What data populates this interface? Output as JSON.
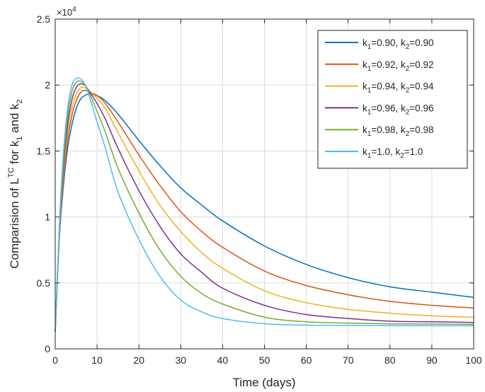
{
  "chart_data": {
    "type": "line",
    "xlabel": "Time (days)",
    "ylabel": {
      "base": "Comparision of L",
      "sup": "TC",
      "mid": " for k",
      "sub1": "1",
      "and": " and k",
      "sub2": "2"
    },
    "exponent_label": {
      "times": "×10",
      "power": "4"
    },
    "xlim": [
      0,
      100
    ],
    "ylim": [
      0,
      25000
    ],
    "x_ticks": [
      0,
      10,
      20,
      30,
      40,
      50,
      60,
      70,
      80,
      90,
      100
    ],
    "y_ticks": [
      {
        "value": 0,
        "label": "0"
      },
      {
        "value": 5000,
        "label": "0.5"
      },
      {
        "value": 10000,
        "label": "1"
      },
      {
        "value": 15000,
        "label": "1.5"
      },
      {
        "value": 20000,
        "label": "2"
      },
      {
        "value": 25000,
        "label": "2.5"
      }
    ],
    "grid": true,
    "legend_position": "top-right",
    "x": [
      0,
      1,
      2,
      3,
      4,
      5,
      6,
      7,
      8,
      10,
      12,
      15,
      20,
      25,
      30,
      35,
      40,
      50,
      60,
      70,
      80,
      90,
      100
    ],
    "series": [
      {
        "name": "k1=0.90, k2=0.90",
        "label": {
          "k1": "0.90",
          "k2": "0.90"
        },
        "color": "#0072BD",
        "values": [
          1300,
          8500,
          12500,
          15300,
          17000,
          18200,
          18900,
          19200,
          19300,
          19200,
          18800,
          17800,
          15800,
          13900,
          12200,
          10900,
          9700,
          7800,
          6400,
          5400,
          4700,
          4300,
          3900
        ]
      },
      {
        "name": "k1=0.92, k2=0.92",
        "label": {
          "k1": "0.92",
          "k2": "0.92"
        },
        "color": "#D95319",
        "values": [
          1300,
          8700,
          13000,
          15900,
          17700,
          18800,
          19400,
          19600,
          19500,
          19200,
          18600,
          17200,
          14700,
          12400,
          10400,
          8900,
          7700,
          5900,
          4800,
          4100,
          3600,
          3300,
          3100
        ]
      },
      {
        "name": "k1=0.94, k2=0.94",
        "label": {
          "k1": "0.94",
          "k2": "0.94"
        },
        "color": "#EDB120",
        "values": [
          1300,
          8900,
          13500,
          16500,
          18300,
          19300,
          19800,
          19800,
          19600,
          19000,
          18200,
          16400,
          13500,
          10900,
          8900,
          7300,
          6100,
          4400,
          3500,
          3000,
          2700,
          2500,
          2400
        ]
      },
      {
        "name": "k1=0.96, k2=0.96",
        "label": {
          "k1": "0.96",
          "k2": "0.96"
        },
        "color": "#7E2F8E",
        "values": [
          1300,
          9100,
          14000,
          17100,
          18900,
          19800,
          20100,
          20000,
          19600,
          18600,
          17400,
          15200,
          12000,
          9300,
          7200,
          5800,
          4600,
          3300,
          2600,
          2300,
          2100,
          2050,
          2000
        ]
      },
      {
        "name": "k1=0.98, k2=0.98",
        "label": {
          "k1": "0.98",
          "k2": "0.98"
        },
        "color": "#77AC30",
        "values": [
          1300,
          9300,
          14500,
          17700,
          19500,
          20200,
          20300,
          20100,
          19500,
          18000,
          16400,
          13700,
          10300,
          7500,
          5500,
          4200,
          3400,
          2400,
          2050,
          1950,
          1900,
          1880,
          1850
        ]
      },
      {
        "name": "k1=1.0, k2=1.0",
        "label": {
          "k1": "1.0",
          "k2": "1.0"
        },
        "color": "#4DBEEE",
        "values": [
          1300,
          9500,
          15000,
          18300,
          20000,
          20500,
          20500,
          20100,
          19300,
          17200,
          15200,
          11900,
          8300,
          5500,
          3700,
          2800,
          2300,
          1900,
          1800,
          1780,
          1760,
          1750,
          1750
        ]
      }
    ]
  }
}
